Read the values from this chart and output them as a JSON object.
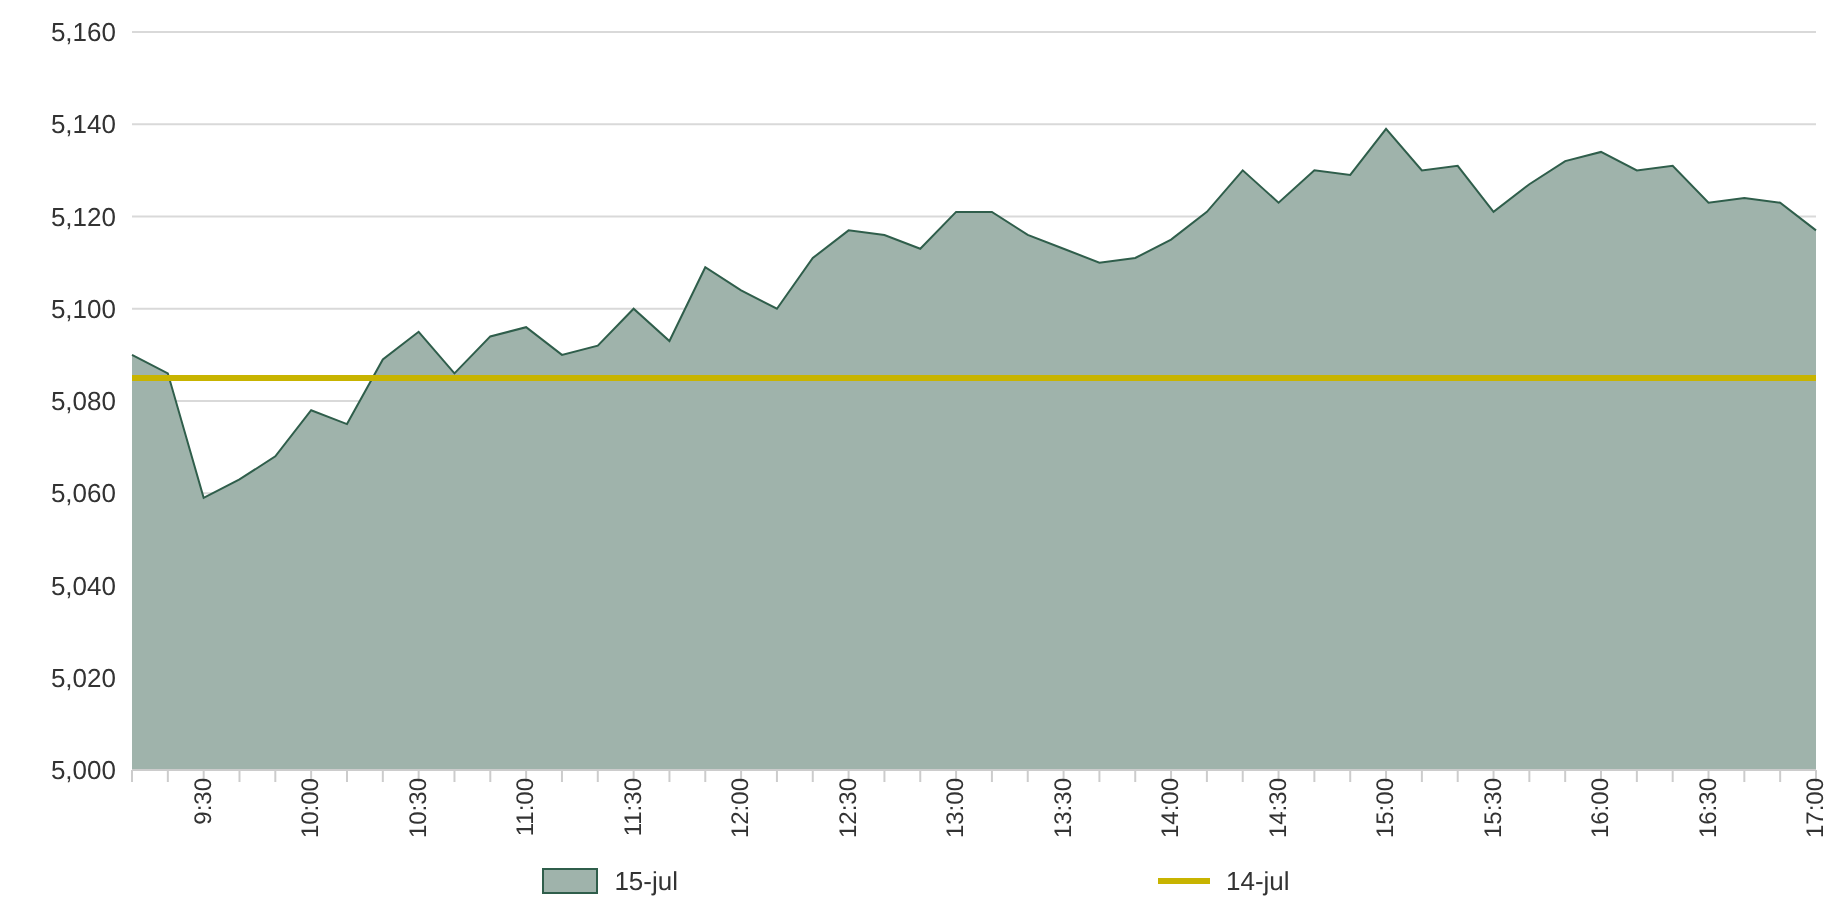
{
  "chart_data": {
    "type": "area",
    "categories": [
      null,
      null,
      "9:30",
      null,
      null,
      "10:00",
      null,
      null,
      "10:30",
      null,
      null,
      "11:00",
      null,
      null,
      "11:30",
      null,
      null,
      "12:00",
      null,
      null,
      "12:30",
      null,
      null,
      "13:00",
      null,
      null,
      "13:30",
      null,
      null,
      "14:00",
      null,
      null,
      "14:30",
      null,
      null,
      "15:00",
      null,
      null,
      "15:30",
      null,
      null,
      "16:00",
      null,
      null,
      "16:30",
      null,
      null,
      "17:00"
    ],
    "series": [
      {
        "name": "15-jul",
        "color": "#9fb3ab",
        "values": [
          5090,
          5086,
          5059,
          5063,
          5068,
          5078,
          5075,
          5089,
          5095,
          5086,
          5094,
          5096,
          5090,
          5092,
          5100,
          5093,
          5109,
          5104,
          5100,
          5111,
          5117,
          5116,
          5113,
          5121,
          5121,
          5116,
          5113,
          5110,
          5111,
          5115,
          5121,
          5130,
          5123,
          5130,
          5129,
          5139,
          5130,
          5131,
          5121,
          5127,
          5132,
          5134,
          5130,
          5131,
          5123,
          5124,
          5123,
          5117
        ]
      },
      {
        "name": "14-jul",
        "type": "line",
        "color": "#c8b400",
        "values": [
          5085,
          5085,
          5085,
          5085,
          5085,
          5085,
          5085,
          5085,
          5085,
          5085,
          5085,
          5085,
          5085,
          5085,
          5085,
          5085,
          5085,
          5085,
          5085,
          5085,
          5085,
          5085,
          5085,
          5085,
          5085,
          5085,
          5085,
          5085,
          5085,
          5085,
          5085,
          5085,
          5085,
          5085,
          5085,
          5085,
          5085,
          5085,
          5085,
          5085,
          5085,
          5085,
          5085,
          5085,
          5085,
          5085,
          5085,
          5085
        ]
      }
    ],
    "ylim": [
      5000,
      5160
    ],
    "yticks": [
      {
        "value": 5000,
        "label": "5,000"
      },
      {
        "value": 5020,
        "label": "5,020"
      },
      {
        "value": 5040,
        "label": "5,040"
      },
      {
        "value": 5060,
        "label": "5,060"
      },
      {
        "value": 5080,
        "label": "5,080"
      },
      {
        "value": 5100,
        "label": "5,100"
      },
      {
        "value": 5120,
        "label": "5,120"
      },
      {
        "value": 5140,
        "label": "5,140"
      },
      {
        "value": 5160,
        "label": "5,160"
      }
    ],
    "grid": "y",
    "legend": "bottom",
    "marker": "none"
  }
}
